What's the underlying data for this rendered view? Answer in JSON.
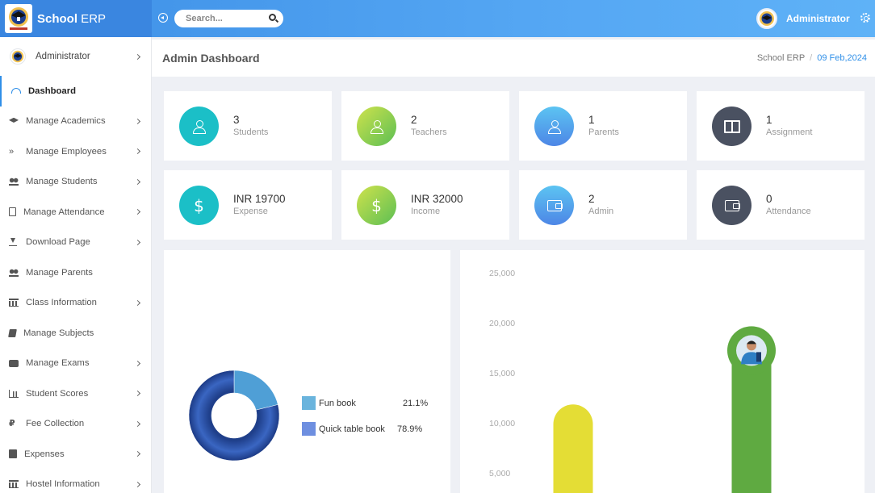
{
  "app": {
    "brand_bold": "School",
    "brand_rest": " ERP",
    "search_placeholder": "Search...",
    "user_name": "Administrator"
  },
  "sidebar": {
    "user_label": "Administrator",
    "items": [
      {
        "label": "Dashboard",
        "icon": "dashboard-icon",
        "active": true,
        "chevron": false
      },
      {
        "label": "Manage Academics",
        "icon": "graduation-cap-icon",
        "chevron": true
      },
      {
        "label": "Manage Employees",
        "icon": "double-chevron-icon",
        "chevron": true
      },
      {
        "label": "Manage Students",
        "icon": "users-icon",
        "chevron": true
      },
      {
        "label": "Manage Attendance",
        "icon": "clipboard-icon",
        "chevron": true
      },
      {
        "label": "Download Page",
        "icon": "download-icon",
        "chevron": true
      },
      {
        "label": "Manage Parents",
        "icon": "users-icon",
        "chevron": false
      },
      {
        "label": "Class Information",
        "icon": "bank-icon",
        "chevron": true
      },
      {
        "label": "Manage Subjects",
        "icon": "book-icon",
        "chevron": false
      },
      {
        "label": "Manage Exams",
        "icon": "briefcase-icon",
        "chevron": true
      },
      {
        "label": "Student Scores",
        "icon": "bar-chart-icon",
        "chevron": true
      },
      {
        "label": "Fee Collection",
        "icon": "rupee-icon",
        "chevron": true
      },
      {
        "label": "Expenses",
        "icon": "calculator-icon",
        "chevron": true
      },
      {
        "label": "Hostel Information",
        "icon": "bank-icon",
        "chevron": true
      }
    ]
  },
  "header": {
    "title": "Admin Dashboard",
    "breadcrumb_root": "School ERP",
    "breadcrumb_sep": "/",
    "date": "09 Feb,2024"
  },
  "cards": [
    {
      "value": "3",
      "label": "Students",
      "icon": "user-icon",
      "color": "#1bbfc7"
    },
    {
      "value": "2",
      "label": "Teachers",
      "icon": "user-icon",
      "color": "#8fd14f"
    },
    {
      "value": "1",
      "label": "Parents",
      "icon": "user-icon",
      "color": "#4d9ff0"
    },
    {
      "value": "1",
      "label": "Assignment",
      "icon": "book-open-icon",
      "color": "#4a5161"
    },
    {
      "value": "INR 19700",
      "label": "Expense",
      "icon": "dollar-icon",
      "color": "#1bbfc7"
    },
    {
      "value": "INR 32000",
      "label": "Income",
      "icon": "dollar-icon",
      "color": "#8fd14f"
    },
    {
      "value": "2",
      "label": "Admin",
      "icon": "wallet-icon",
      "color": "#4d9ff0"
    },
    {
      "value": "0",
      "label": "Attendance",
      "icon": "wallet-icon",
      "color": "#4a5161"
    }
  ],
  "chart_data": [
    {
      "type": "pie",
      "categories": [
        "Fun book",
        "Quick table book"
      ],
      "values": [
        21.1,
        78.9
      ],
      "value_labels": [
        "21.1%",
        "78.9%"
      ],
      "colors": [
        "#5aaedc",
        "#2c4fa0"
      ],
      "legend_colors": [
        "#6ab4dd",
        "#6e8fe0"
      ],
      "donut": true,
      "legend": "right"
    },
    {
      "type": "bar",
      "categories": [
        "",
        ""
      ],
      "values": [
        12000,
        19000
      ],
      "colors": [
        "#e4dd35",
        "#5faa41"
      ],
      "y_ticks": [
        "5,000",
        "10,000",
        "15,000",
        "20,000",
        "25,000"
      ],
      "y_tick_values": [
        5000,
        10000,
        15000,
        20000,
        25000
      ],
      "ylim": [
        0,
        25000
      ],
      "rounded_bars": true,
      "top_marker": "student-avatar"
    }
  ]
}
